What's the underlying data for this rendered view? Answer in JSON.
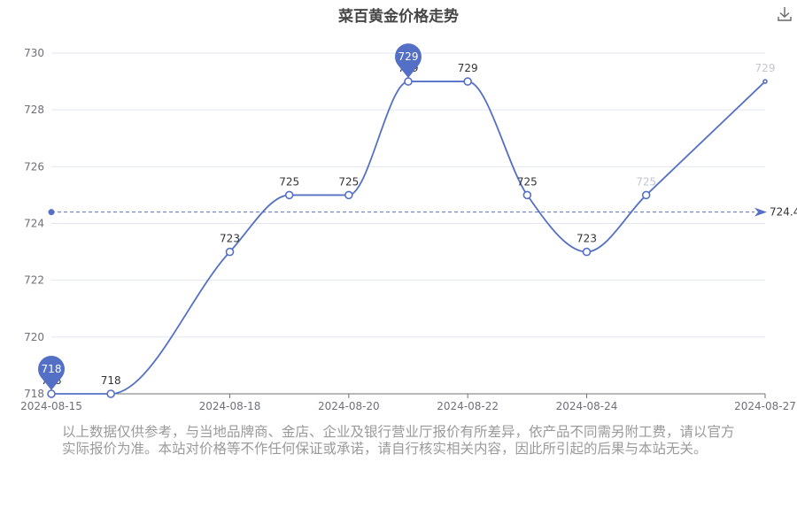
{
  "title": "菜百黄金价格走势",
  "toolbar": {
    "download_icon": "download-icon"
  },
  "chart_data": {
    "type": "line",
    "title": "菜百黄金价格走势",
    "x": [
      "2024-08-15",
      "2024-08-16",
      "2024-08-18",
      "2024-08-19",
      "2024-08-20",
      "2024-08-21",
      "2024-08-22",
      "2024-08-23",
      "2024-08-24",
      "2024-08-25",
      "2024-08-27"
    ],
    "values": [
      718,
      718,
      723,
      725,
      725,
      729,
      729,
      725,
      723,
      725,
      729
    ],
    "xticks": [
      "2024-08-15",
      "2024-08-18",
      "2024-08-20",
      "2024-08-22",
      "2024-08-24",
      "2024-08-27"
    ],
    "yticks": [
      718,
      720,
      722,
      724,
      726,
      728,
      730
    ],
    "ylim": [
      718,
      730
    ],
    "average": 724.4,
    "average_label": "724.4",
    "max_marker": "729",
    "min_marker": "718",
    "series_color": "#5470c6",
    "grid": true,
    "smooth": true
  },
  "disclaimer": "以上数据仅供参考，与当地品牌商、金店、企业及银行营业厅报价有所差异，依产品不同需另附工费，请以官方实际报价为准。本站对价格等不作任何保证或承诺，请自行核实相关内容，因此所引起的后果与本站无关。"
}
